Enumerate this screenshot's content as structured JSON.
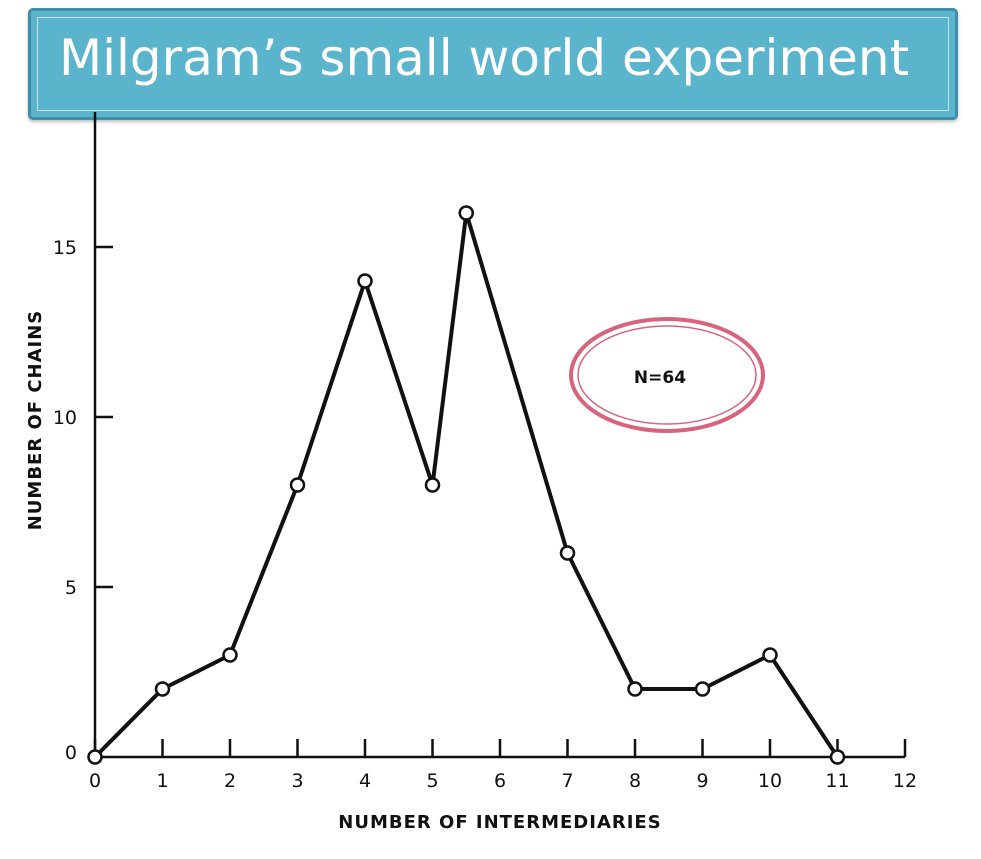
{
  "slide": {
    "title": "Milgram’s small world experiment"
  },
  "colors": {
    "banner": "#5ab4cc",
    "annotation_ellipse": "#d9637a",
    "line": "#111111"
  },
  "chart_data": {
    "type": "line",
    "title": "",
    "xlabel": "NUMBER OF INTERMEDIARIES",
    "ylabel": "NUMBER OF CHAINS",
    "x": [
      0,
      1,
      2,
      3,
      4,
      5,
      5.5,
      7,
      8,
      9,
      10,
      11
    ],
    "series": [
      {
        "values": [
          0,
          2,
          3,
          8,
          14,
          8,
          16,
          6,
          2,
          2,
          3,
          0
        ]
      }
    ],
    "xlim": [
      0,
      12
    ],
    "ylim": [
      0,
      18
    ],
    "xticks": [
      "0",
      "1",
      "2",
      "3",
      "4",
      "5",
      "6",
      "7",
      "8",
      "9",
      "10",
      "11",
      "12"
    ],
    "yticks": [
      "0",
      "5",
      "10",
      "15"
    ],
    "annotation": "N=64",
    "markers": "hollow-circle",
    "grid": false
  }
}
